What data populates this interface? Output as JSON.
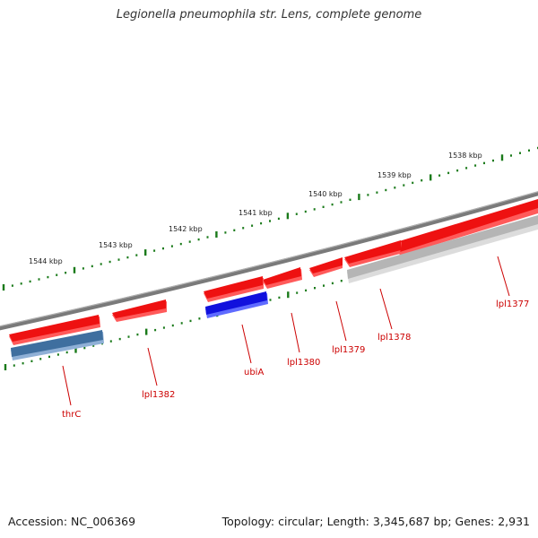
{
  "title": "Legionella pneumophila str. Lens, complete genome",
  "footer": {
    "accession": "Accession: NC_006369",
    "summary": "Topology: circular; Length: 3,345,687 bp; Genes: 2,931"
  },
  "colors": {
    "backbone": "#7a7a7a",
    "forward_gene": "#ee1111",
    "reverse_gene_blue": "#1111dd",
    "reverse_gene_steel": "#3f6f9f",
    "reverse_gene_grey": "#bdbdbd",
    "ruler": "#1a7a1a",
    "label": "#cc0000"
  },
  "ruler_labels": [
    "1538 kbp",
    "1539 kbp",
    "1540 kbp",
    "1541 kbp",
    "1542 kbp",
    "1543 kbp",
    "1544 kbp"
  ],
  "genes": [
    {
      "name": "lpl1377",
      "strand": "+"
    },
    {
      "name": "lpl1378",
      "strand": "+"
    },
    {
      "name": "lpl1379",
      "strand": "+"
    },
    {
      "name": "lpl1380",
      "strand": "+"
    },
    {
      "name": "ubiA",
      "strand": "-"
    },
    {
      "name": "lpl1382",
      "strand": "+"
    },
    {
      "name": "thrC",
      "strand": "-"
    }
  ]
}
